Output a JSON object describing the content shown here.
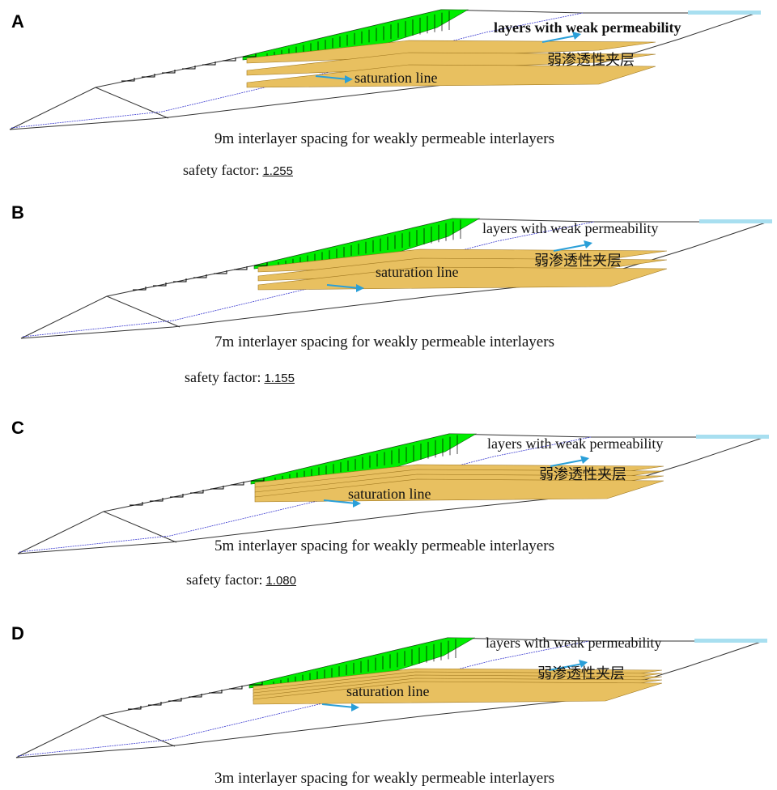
{
  "panels": [
    {
      "label": "A",
      "caption": "9m interlayer spacing for weakly permeable interlayers",
      "safety_label": "safety factor:",
      "safety_value": "1.255",
      "bands": 3,
      "band_gap": 15,
      "annot_weak": "layers with weak permeability",
      "annot_weak_bold": true,
      "annot_zh": "弱渗透性夹层",
      "annot_sat": "saturation line"
    },
    {
      "label": "B",
      "caption": "7m interlayer spacing for weakly permeable interlayers",
      "safety_label": "safety factor:",
      "safety_value": "1.155",
      "bands": 3,
      "band_gap": 11,
      "annot_weak": "layers with weak permeability",
      "annot_weak_bold": false,
      "annot_zh": "弱渗透性夹层",
      "annot_sat": "saturation line"
    },
    {
      "label": "C",
      "caption": "5m interlayer spacing for weakly permeable interlayers",
      "safety_label": "safety factor:",
      "safety_value": "1.080",
      "bands": 4,
      "band_gap": 6,
      "annot_weak": "layers with weak permeability",
      "annot_weak_bold": false,
      "annot_zh": "弱渗透性夹层",
      "annot_sat": "saturation line"
    },
    {
      "label": "D",
      "caption": "3m interlayer spacing for weakly permeable interlayers",
      "safety_label": "",
      "safety_value": "",
      "bands": 5,
      "band_gap": 4,
      "annot_weak": "layers with weak permeability",
      "annot_weak_bold": false,
      "annot_zh": "弱渗透性夹层",
      "annot_sat": "saturation line"
    }
  ],
  "colors": {
    "slip_mass": "#00ee00",
    "interlayer": "#e8c060",
    "interlayer_edge": "#a07820",
    "arrow": "#2a9fd8",
    "saturation": "#3a3ad0",
    "water": "#a8dff0",
    "outline": "#333333"
  }
}
